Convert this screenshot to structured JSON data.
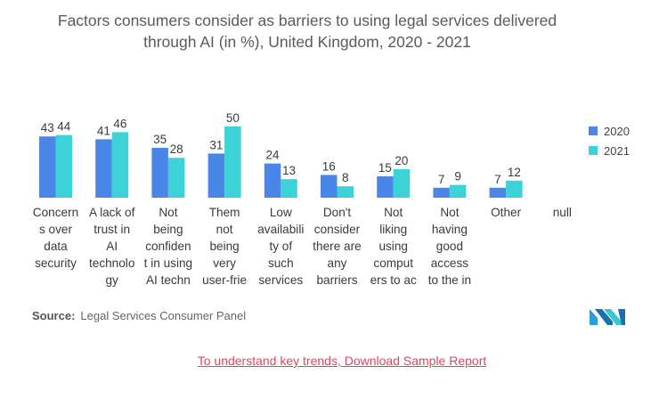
{
  "title_lines": [
    "Factors consumers consider as barriers to using legal services delivered",
    "through AI (in %), United Kingdom, 2020 - 2021"
  ],
  "colors": {
    "series_2020": "#4a86e8",
    "series_2021": "#3dd1d8"
  },
  "chart_data": {
    "type": "bar",
    "title": "Factors consumers consider as barriers to using legal services delivered through AI (in %), United Kingdom, 2020 - 2021",
    "categories": [
      "Concerns over data security",
      "A lack of trust in AI technology",
      "Not being confident in using AI techn",
      "Them not being very user-frie",
      "Low availability of such services",
      "Don't consider there are any barriers",
      "Not liking using computers to ac",
      "Not having good access to the in",
      "Other",
      "null"
    ],
    "category_label_lines": [
      [
        "Concern",
        "s over",
        "data",
        "security"
      ],
      [
        "A lack of",
        "trust in",
        "AI",
        "technolo",
        "gy"
      ],
      [
        "Not",
        "being",
        "confiden",
        "t in using",
        "AI techn"
      ],
      [
        "Them",
        "not",
        "being",
        "very",
        "user-frie"
      ],
      [
        "Low",
        "availabili",
        "ty of",
        "such",
        "services"
      ],
      [
        "Don't",
        "consider",
        "there are",
        "any",
        "barriers"
      ],
      [
        "Not",
        "liking",
        "using",
        "comput",
        "ers to ac"
      ],
      [
        "Not",
        "having",
        "good",
        "access",
        "to the in"
      ],
      [
        "Other"
      ],
      [
        "null"
      ]
    ],
    "series": [
      {
        "name": "2020",
        "values": [
          43,
          41,
          35,
          31,
          24,
          16,
          15,
          7,
          7,
          null
        ]
      },
      {
        "name": "2021",
        "values": [
          44,
          46,
          28,
          50,
          13,
          8,
          20,
          9,
          12,
          null
        ]
      }
    ],
    "xlabel": "",
    "ylabel": "",
    "ylim": [
      0,
      50
    ],
    "grid": false,
    "legend": "right"
  },
  "source": {
    "label": "Source:",
    "text": "Legal Services Consumer Panel"
  },
  "cta": "To understand key trends, Download Sample Report",
  "logo": {
    "icon": "mordor-intelligence-logo"
  }
}
